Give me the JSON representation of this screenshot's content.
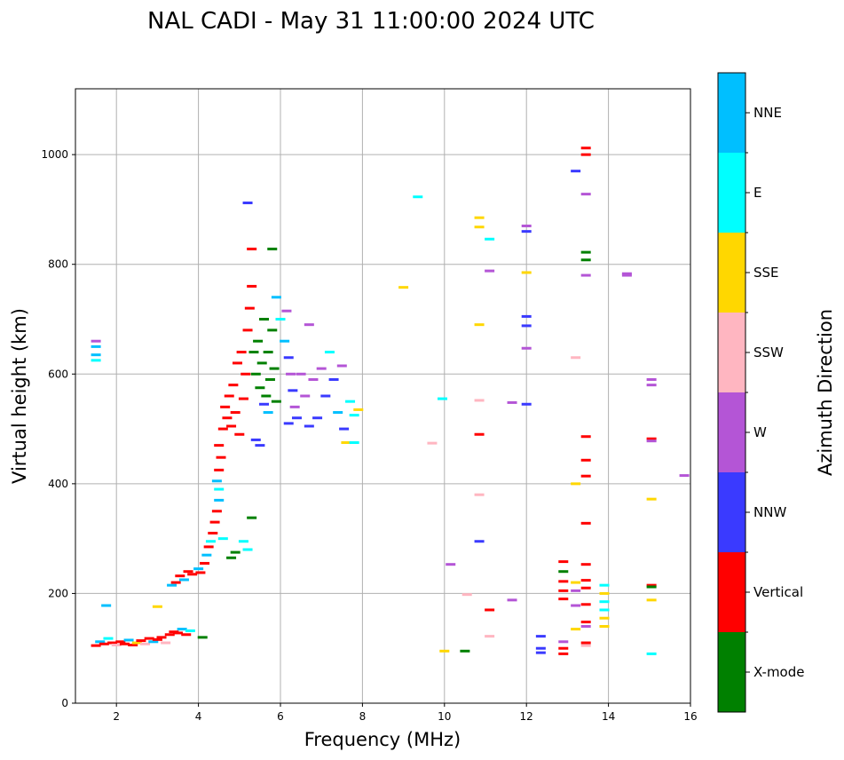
{
  "chart_data": {
    "type": "scatter",
    "title": "NAL CADI - May 31 11:00:00 2024 UTC",
    "xlabel": "Frequency (MHz)",
    "ylabel": "Virtual height (km)",
    "xlim": [
      1,
      16
    ],
    "ylim": [
      0,
      1120
    ],
    "xticks": [
      2,
      4,
      6,
      8,
      10,
      12,
      14,
      16
    ],
    "yticks": [
      0,
      200,
      400,
      600,
      800,
      1000
    ],
    "grid": true,
    "colorbar": {
      "label": "Azimuth Direction",
      "categories": [
        {
          "name": "X-mode",
          "color": "#008000"
        },
        {
          "name": "Vertical",
          "color": "#ff0000"
        },
        {
          "name": "NNW",
          "color": "#3a3aff"
        },
        {
          "name": "W",
          "color": "#b455d6"
        },
        {
          "name": "SSW",
          "color": "#ffb6c1"
        },
        {
          "name": "SSE",
          "color": "#ffd700"
        },
        {
          "name": "E",
          "color": "#00ffff"
        },
        {
          "name": "NNE",
          "color": "#00bfff"
        }
      ]
    },
    "points": [
      {
        "f": 1.5,
        "h": 660,
        "c": "W"
      },
      {
        "f": 1.5,
        "h": 650,
        "c": "NNE"
      },
      {
        "f": 1.5,
        "h": 635,
        "c": "NNE"
      },
      {
        "f": 1.5,
        "h": 625,
        "c": "E"
      },
      {
        "f": 1.5,
        "h": 105,
        "c": "Vertical"
      },
      {
        "f": 1.6,
        "h": 112,
        "c": "NNE"
      },
      {
        "f": 1.7,
        "h": 108,
        "c": "Vertical"
      },
      {
        "f": 1.8,
        "h": 118,
        "c": "E"
      },
      {
        "f": 1.9,
        "h": 110,
        "c": "Vertical"
      },
      {
        "f": 2.0,
        "h": 106,
        "c": "SSW"
      },
      {
        "f": 2.1,
        "h": 112,
        "c": "Vertical"
      },
      {
        "f": 2.2,
        "h": 108,
        "c": "Vertical"
      },
      {
        "f": 2.3,
        "h": 115,
        "c": "NNE"
      },
      {
        "f": 2.4,
        "h": 106,
        "c": "Vertical"
      },
      {
        "f": 2.5,
        "h": 110,
        "c": "SSE"
      },
      {
        "f": 2.6,
        "h": 114,
        "c": "Vertical"
      },
      {
        "f": 2.7,
        "h": 108,
        "c": "SSW"
      },
      {
        "f": 2.8,
        "h": 118,
        "c": "Vertical"
      },
      {
        "f": 2.9,
        "h": 112,
        "c": "NNE"
      },
      {
        "f": 3.0,
        "h": 116,
        "c": "Vertical"
      },
      {
        "f": 3.1,
        "h": 120,
        "c": "Vertical"
      },
      {
        "f": 3.2,
        "h": 110,
        "c": "SSW"
      },
      {
        "f": 3.3,
        "h": 125,
        "c": "Vertical"
      },
      {
        "f": 3.4,
        "h": 130,
        "c": "Vertical"
      },
      {
        "f": 3.5,
        "h": 128,
        "c": "Vertical"
      },
      {
        "f": 3.6,
        "h": 135,
        "c": "NNE"
      },
      {
        "f": 3.7,
        "h": 125,
        "c": "Vertical"
      },
      {
        "f": 3.8,
        "h": 132,
        "c": "E"
      },
      {
        "f": 1.75,
        "h": 178,
        "c": "NNE"
      },
      {
        "f": 3.0,
        "h": 176,
        "c": "SSE"
      },
      {
        "f": 4.1,
        "h": 120,
        "c": "X-mode"
      },
      {
        "f": 3.35,
        "h": 215,
        "c": "NNE"
      },
      {
        "f": 3.45,
        "h": 220,
        "c": "Vertical"
      },
      {
        "f": 3.55,
        "h": 232,
        "c": "Vertical"
      },
      {
        "f": 3.65,
        "h": 225,
        "c": "NNE"
      },
      {
        "f": 3.75,
        "h": 240,
        "c": "Vertical"
      },
      {
        "f": 3.85,
        "h": 235,
        "c": "Vertical"
      },
      {
        "f": 4.0,
        "h": 245,
        "c": "NNE"
      },
      {
        "f": 4.05,
        "h": 238,
        "c": "Vertical"
      },
      {
        "f": 4.15,
        "h": 255,
        "c": "Vertical"
      },
      {
        "f": 4.2,
        "h": 270,
        "c": "NNE"
      },
      {
        "f": 4.25,
        "h": 285,
        "c": "Vertical"
      },
      {
        "f": 4.3,
        "h": 295,
        "c": "E"
      },
      {
        "f": 4.35,
        "h": 310,
        "c": "Vertical"
      },
      {
        "f": 4.4,
        "h": 330,
        "c": "Vertical"
      },
      {
        "f": 4.45,
        "h": 350,
        "c": "Vertical"
      },
      {
        "f": 4.5,
        "h": 370,
        "c": "NNE"
      },
      {
        "f": 4.5,
        "h": 390,
        "c": "E"
      },
      {
        "f": 4.45,
        "h": 405,
        "c": "NNE"
      },
      {
        "f": 4.5,
        "h": 425,
        "c": "Vertical"
      },
      {
        "f": 4.55,
        "h": 448,
        "c": "Vertical"
      },
      {
        "f": 4.5,
        "h": 470,
        "c": "Vertical"
      },
      {
        "f": 4.6,
        "h": 300,
        "c": "E"
      },
      {
        "f": 4.8,
        "h": 265,
        "c": "X-mode"
      },
      {
        "f": 4.9,
        "h": 275,
        "c": "X-mode"
      },
      {
        "f": 5.1,
        "h": 295,
        "c": "E"
      },
      {
        "f": 5.2,
        "h": 280,
        "c": "E"
      },
      {
        "f": 5.3,
        "h": 338,
        "c": "X-mode"
      },
      {
        "f": 4.6,
        "h": 500,
        "c": "Vertical"
      },
      {
        "f": 4.65,
        "h": 540,
        "c": "Vertical"
      },
      {
        "f": 4.7,
        "h": 520,
        "c": "Vertical"
      },
      {
        "f": 4.75,
        "h": 560,
        "c": "Vertical"
      },
      {
        "f": 4.8,
        "h": 505,
        "c": "Vertical"
      },
      {
        "f": 4.85,
        "h": 580,
        "c": "Vertical"
      },
      {
        "f": 4.9,
        "h": 530,
        "c": "Vertical"
      },
      {
        "f": 4.95,
        "h": 620,
        "c": "Vertical"
      },
      {
        "f": 5.0,
        "h": 490,
        "c": "Vertical"
      },
      {
        "f": 5.05,
        "h": 640,
        "c": "Vertical"
      },
      {
        "f": 5.1,
        "h": 555,
        "c": "Vertical"
      },
      {
        "f": 5.15,
        "h": 600,
        "c": "Vertical"
      },
      {
        "f": 5.2,
        "h": 680,
        "c": "Vertical"
      },
      {
        "f": 5.25,
        "h": 720,
        "c": "Vertical"
      },
      {
        "f": 5.3,
        "h": 760,
        "c": "Vertical"
      },
      {
        "f": 5.3,
        "h": 828,
        "c": "Vertical"
      },
      {
        "f": 5.35,
        "h": 640,
        "c": "X-mode"
      },
      {
        "f": 5.4,
        "h": 600,
        "c": "X-mode"
      },
      {
        "f": 5.45,
        "h": 660,
        "c": "X-mode"
      },
      {
        "f": 5.5,
        "h": 575,
        "c": "X-mode"
      },
      {
        "f": 5.55,
        "h": 620,
        "c": "X-mode"
      },
      {
        "f": 5.6,
        "h": 700,
        "c": "X-mode"
      },
      {
        "f": 5.65,
        "h": 560,
        "c": "X-mode"
      },
      {
        "f": 5.7,
        "h": 640,
        "c": "X-mode"
      },
      {
        "f": 5.75,
        "h": 590,
        "c": "X-mode"
      },
      {
        "f": 5.8,
        "h": 680,
        "c": "X-mode"
      },
      {
        "f": 5.85,
        "h": 610,
        "c": "X-mode"
      },
      {
        "f": 5.9,
        "h": 550,
        "c": "X-mode"
      },
      {
        "f": 5.8,
        "h": 828,
        "c": "X-mode"
      },
      {
        "f": 5.2,
        "h": 912,
        "c": "NNW"
      },
      {
        "f": 5.4,
        "h": 480,
        "c": "NNW"
      },
      {
        "f": 5.5,
        "h": 470,
        "c": "NNW"
      },
      {
        "f": 5.6,
        "h": 545,
        "c": "NNW"
      },
      {
        "f": 5.7,
        "h": 530,
        "c": "NNE"
      },
      {
        "f": 5.9,
        "h": 740,
        "c": "NNE"
      },
      {
        "f": 6.0,
        "h": 700,
        "c": "E"
      },
      {
        "f": 6.1,
        "h": 660,
        "c": "NNE"
      },
      {
        "f": 6.15,
        "h": 715,
        "c": "W"
      },
      {
        "f": 6.2,
        "h": 630,
        "c": "NNW"
      },
      {
        "f": 6.25,
        "h": 600,
        "c": "W"
      },
      {
        "f": 6.3,
        "h": 570,
        "c": "NNW"
      },
      {
        "f": 6.35,
        "h": 540,
        "c": "W"
      },
      {
        "f": 6.2,
        "h": 510,
        "c": "NNW"
      },
      {
        "f": 6.4,
        "h": 520,
        "c": "NNW"
      },
      {
        "f": 6.5,
        "h": 600,
        "c": "W"
      },
      {
        "f": 6.6,
        "h": 560,
        "c": "W"
      },
      {
        "f": 6.7,
        "h": 505,
        "c": "NNW"
      },
      {
        "f": 6.8,
        "h": 590,
        "c": "W"
      },
      {
        "f": 6.9,
        "h": 520,
        "c": "NNW"
      },
      {
        "f": 7.0,
        "h": 610,
        "c": "W"
      },
      {
        "f": 7.1,
        "h": 560,
        "c": "NNW"
      },
      {
        "f": 7.2,
        "h": 640,
        "c": "E"
      },
      {
        "f": 7.3,
        "h": 590,
        "c": "NNW"
      },
      {
        "f": 7.4,
        "h": 530,
        "c": "NNE"
      },
      {
        "f": 7.5,
        "h": 615,
        "c": "W"
      },
      {
        "f": 7.55,
        "h": 500,
        "c": "NNW"
      },
      {
        "f": 7.6,
        "h": 475,
        "c": "SSE"
      },
      {
        "f": 7.7,
        "h": 550,
        "c": "E"
      },
      {
        "f": 7.8,
        "h": 525,
        "c": "E"
      },
      {
        "f": 7.9,
        "h": 535,
        "c": "SSE"
      },
      {
        "f": 6.7,
        "h": 690,
        "c": "W"
      },
      {
        "f": 7.8,
        "h": 475,
        "c": "E"
      },
      {
        "f": 9.0,
        "h": 758,
        "c": "SSE"
      },
      {
        "f": 9.35,
        "h": 923,
        "c": "E"
      },
      {
        "f": 9.7,
        "h": 474,
        "c": "SSW"
      },
      {
        "f": 9.95,
        "h": 555,
        "c": "E"
      },
      {
        "f": 10.0,
        "h": 95,
        "c": "SSE"
      },
      {
        "f": 10.15,
        "h": 253,
        "c": "W"
      },
      {
        "f": 10.5,
        "h": 95,
        "c": "X-mode"
      },
      {
        "f": 10.55,
        "h": 198,
        "c": "SSW"
      },
      {
        "f": 10.85,
        "h": 885,
        "c": "SSE"
      },
      {
        "f": 10.85,
        "h": 868,
        "c": "SSE"
      },
      {
        "f": 10.85,
        "h": 690,
        "c": "SSE"
      },
      {
        "f": 10.85,
        "h": 552,
        "c": "SSW"
      },
      {
        "f": 10.85,
        "h": 490,
        "c": "Vertical"
      },
      {
        "f": 10.85,
        "h": 380,
        "c": "SSW"
      },
      {
        "f": 10.85,
        "h": 295,
        "c": "NNW"
      },
      {
        "f": 11.1,
        "h": 846,
        "c": "E"
      },
      {
        "f": 11.1,
        "h": 788,
        "c": "W"
      },
      {
        "f": 11.1,
        "h": 170,
        "c": "Vertical"
      },
      {
        "f": 11.1,
        "h": 122,
        "c": "SSW"
      },
      {
        "f": 11.65,
        "h": 548,
        "c": "W"
      },
      {
        "f": 11.65,
        "h": 188,
        "c": "W"
      },
      {
        "f": 12.0,
        "h": 870,
        "c": "W"
      },
      {
        "f": 12.0,
        "h": 860,
        "c": "NNW"
      },
      {
        "f": 12.0,
        "h": 785,
        "c": "SSE"
      },
      {
        "f": 12.0,
        "h": 705,
        "c": "NNW"
      },
      {
        "f": 12.0,
        "h": 688,
        "c": "NNW"
      },
      {
        "f": 12.0,
        "h": 647,
        "c": "W"
      },
      {
        "f": 12.0,
        "h": 545,
        "c": "NNW"
      },
      {
        "f": 12.35,
        "h": 122,
        "c": "NNW"
      },
      {
        "f": 12.35,
        "h": 100,
        "c": "NNW"
      },
      {
        "f": 12.35,
        "h": 92,
        "c": "NNW"
      },
      {
        "f": 12.9,
        "h": 258,
        "c": "Vertical"
      },
      {
        "f": 12.9,
        "h": 240,
        "c": "X-mode"
      },
      {
        "f": 12.9,
        "h": 222,
        "c": "Vertical"
      },
      {
        "f": 12.9,
        "h": 205,
        "c": "Vertical"
      },
      {
        "f": 12.9,
        "h": 190,
        "c": "Vertical"
      },
      {
        "f": 12.9,
        "h": 112,
        "c": "W"
      },
      {
        "f": 12.9,
        "h": 100,
        "c": "Vertical"
      },
      {
        "f": 12.9,
        "h": 90,
        "c": "Vertical"
      },
      {
        "f": 13.2,
        "h": 970,
        "c": "NNW"
      },
      {
        "f": 13.2,
        "h": 630,
        "c": "SSW"
      },
      {
        "f": 13.2,
        "h": 400,
        "c": "SSE"
      },
      {
        "f": 13.2,
        "h": 220,
        "c": "SSE"
      },
      {
        "f": 13.2,
        "h": 205,
        "c": "W"
      },
      {
        "f": 13.2,
        "h": 178,
        "c": "W"
      },
      {
        "f": 13.2,
        "h": 135,
        "c": "SSE"
      },
      {
        "f": 13.45,
        "h": 1012,
        "c": "Vertical"
      },
      {
        "f": 13.45,
        "h": 1000,
        "c": "Vertical"
      },
      {
        "f": 13.45,
        "h": 928,
        "c": "W"
      },
      {
        "f": 13.45,
        "h": 822,
        "c": "X-mode"
      },
      {
        "f": 13.45,
        "h": 808,
        "c": "X-mode"
      },
      {
        "f": 13.45,
        "h": 780,
        "c": "W"
      },
      {
        "f": 13.45,
        "h": 486,
        "c": "Vertical"
      },
      {
        "f": 13.45,
        "h": 443,
        "c": "Vertical"
      },
      {
        "f": 13.45,
        "h": 414,
        "c": "Vertical"
      },
      {
        "f": 13.45,
        "h": 328,
        "c": "Vertical"
      },
      {
        "f": 13.45,
        "h": 253,
        "c": "Vertical"
      },
      {
        "f": 13.45,
        "h": 224,
        "c": "Vertical"
      },
      {
        "f": 13.45,
        "h": 210,
        "c": "Vertical"
      },
      {
        "f": 13.45,
        "h": 180,
        "c": "Vertical"
      },
      {
        "f": 13.45,
        "h": 148,
        "c": "Vertical"
      },
      {
        "f": 13.45,
        "h": 140,
        "c": "W"
      },
      {
        "f": 13.45,
        "h": 110,
        "c": "Vertical"
      },
      {
        "f": 13.45,
        "h": 105,
        "c": "SSW"
      },
      {
        "f": 13.9,
        "h": 215,
        "c": "E"
      },
      {
        "f": 13.9,
        "h": 200,
        "c": "SSE"
      },
      {
        "f": 13.9,
        "h": 185,
        "c": "E"
      },
      {
        "f": 13.9,
        "h": 170,
        "c": "E"
      },
      {
        "f": 13.9,
        "h": 155,
        "c": "SSE"
      },
      {
        "f": 13.9,
        "h": 140,
        "c": "SSE"
      },
      {
        "f": 14.45,
        "h": 783,
        "c": "W"
      },
      {
        "f": 14.45,
        "h": 780,
        "c": "W"
      },
      {
        "f": 15.05,
        "h": 590,
        "c": "W"
      },
      {
        "f": 15.05,
        "h": 580,
        "c": "W"
      },
      {
        "f": 15.05,
        "h": 482,
        "c": "Vertical"
      },
      {
        "f": 15.05,
        "h": 478,
        "c": "W"
      },
      {
        "f": 15.05,
        "h": 372,
        "c": "SSE"
      },
      {
        "f": 15.05,
        "h": 215,
        "c": "Vertical"
      },
      {
        "f": 15.05,
        "h": 212,
        "c": "X-mode"
      },
      {
        "f": 15.05,
        "h": 188,
        "c": "SSE"
      },
      {
        "f": 15.05,
        "h": 90,
        "c": "E"
      },
      {
        "f": 15.85,
        "h": 415,
        "c": "W"
      }
    ]
  }
}
